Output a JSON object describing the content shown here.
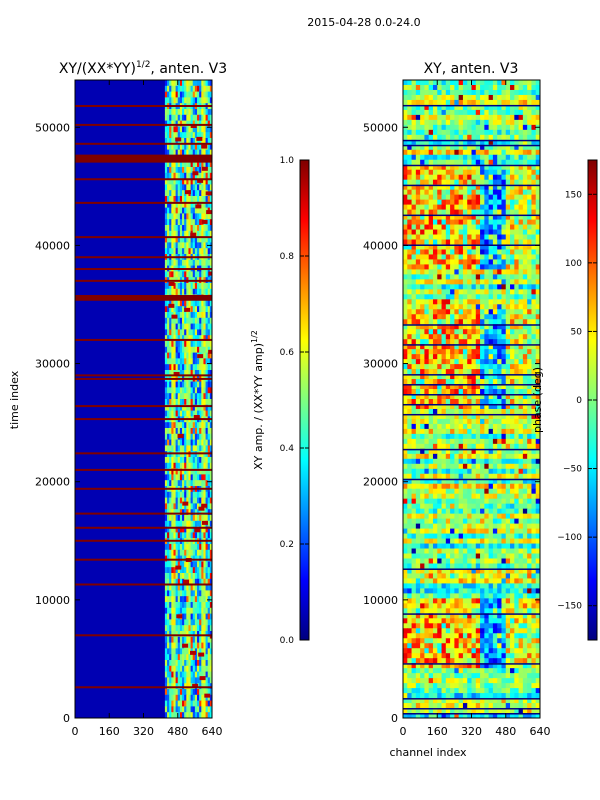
{
  "figure": {
    "suptitle": "2015-04-28 0.0-24.0"
  },
  "colors": {
    "jet_0": "#00007f",
    "jet_1": "#0000ff",
    "jet_2": "#007fff",
    "jet_3": "#00ffff",
    "jet_4": "#7fff7f",
    "jet_5": "#ffff00",
    "jet_6": "#ff7f00",
    "jet_7": "#ff0000",
    "jet_8": "#7f0000"
  },
  "chart_data": [
    {
      "type": "heatmap",
      "title": "XY/(XX*YY)",
      "title_exp": "1/2",
      "title_suffix": ", anten. V3",
      "xlabel": "",
      "ylabel": "time index",
      "xlim": [
        0,
        640
      ],
      "ylim": [
        0,
        54000
      ],
      "xticks": [
        0,
        160,
        320,
        480,
        640
      ],
      "yticks": [
        0,
        10000,
        20000,
        30000,
        40000,
        50000
      ],
      "colorbar": {
        "label": "XY amp. / (XX*YY amp)",
        "label_exp": "1/2",
        "range": [
          0.0,
          1.0
        ],
        "ticks": [
          "0.0",
          "0.2",
          "0.4",
          "0.6",
          "0.8",
          "1.0"
        ]
      },
      "description_points": {
        "background_value": 0.05,
        "active_channel_range": [
          420,
          640
        ],
        "flagged_time_rows": [
          2600,
          7000,
          11300,
          13400,
          15000,
          16100,
          17300,
          19400,
          21000,
          22400,
          25300,
          26400,
          28700,
          29000,
          32000,
          35400,
          35700,
          37000,
          38000,
          39000,
          40700,
          43600,
          45600,
          47300,
          47600,
          48600,
          50200,
          51800
        ]
      }
    },
    {
      "type": "heatmap",
      "title": "XY, anten. V3",
      "xlabel": "channel index",
      "ylabel": "",
      "xlim": [
        0,
        640
      ],
      "ylim": [
        0,
        54000
      ],
      "xticks": [
        0,
        160,
        320,
        480,
        640
      ],
      "yticks": [
        0,
        10000,
        20000,
        30000,
        40000,
        50000
      ],
      "colorbar": {
        "label": "phase (deg)",
        "range": [
          -180,
          180
        ],
        "ticks": [
          "−150",
          "−100",
          "−50",
          "0",
          "50",
          "100",
          "150"
        ]
      }
    }
  ],
  "axis_labels": {
    "xt": [
      "0",
      "160",
      "320",
      "480",
      "640"
    ],
    "yt": [
      "0",
      "10000",
      "20000",
      "30000",
      "40000",
      "50000"
    ]
  }
}
